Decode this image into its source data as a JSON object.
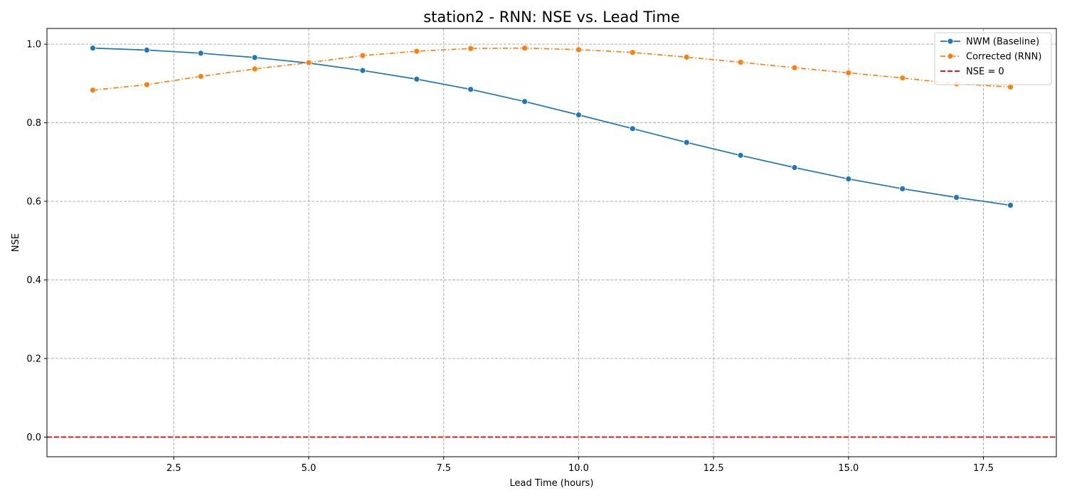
{
  "chart_data": {
    "type": "line",
    "title": "station2 - RNN: NSE vs. Lead Time",
    "xlabel": "Lead Time (hours)",
    "ylabel": "NSE",
    "xlim": [
      0.15,
      18.85
    ],
    "ylim": [
      -0.05,
      1.04
    ],
    "xticks": [
      2.5,
      5.0,
      7.5,
      10.0,
      12.5,
      15.0,
      17.5
    ],
    "xtick_labels": [
      "2.5",
      "5.0",
      "7.5",
      "10.0",
      "12.5",
      "15.0",
      "17.5"
    ],
    "yticks": [
      0.0,
      0.2,
      0.4,
      0.6,
      0.8,
      1.0
    ],
    "ytick_labels": [
      "0.0",
      "0.2",
      "0.4",
      "0.6",
      "0.8",
      "1.0"
    ],
    "grid": true,
    "legend_position": "top-right",
    "x": [
      1,
      2,
      3,
      4,
      5,
      6,
      7,
      8,
      9,
      10,
      11,
      12,
      13,
      14,
      15,
      16,
      17,
      18
    ],
    "series": [
      {
        "name": "NWM (Baseline)",
        "color": "#1f77b4",
        "style": "solid",
        "marker": "circle",
        "values": [
          0.99,
          0.985,
          0.977,
          0.966,
          0.952,
          0.933,
          0.911,
          0.885,
          0.854,
          0.82,
          0.785,
          0.75,
          0.717,
          0.686,
          0.657,
          0.632,
          0.61,
          0.59
        ]
      },
      {
        "name": "Corrected (RNN)",
        "color": "#ff7f0e",
        "style": "dashdot",
        "marker": "circle",
        "values": [
          0.883,
          0.897,
          0.918,
          0.937,
          0.953,
          0.971,
          0.982,
          0.989,
          0.99,
          0.986,
          0.979,
          0.967,
          0.954,
          0.94,
          0.927,
          0.914,
          0.899,
          0.891
        ]
      }
    ],
    "reference_lines": [
      {
        "name": "NSE = 0",
        "y": 0.0,
        "color": "#e41a1c",
        "style": "dashed"
      }
    ]
  }
}
